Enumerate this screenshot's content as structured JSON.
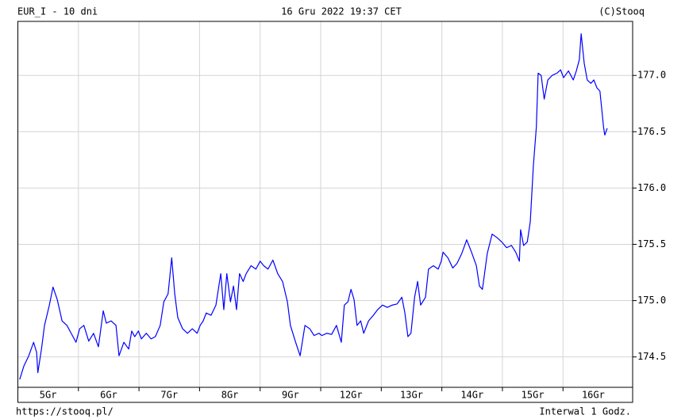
{
  "chart_data": {
    "type": "line",
    "title": "EUR_I - 10 dni",
    "subtitle": "16 Gru 2022 19:37 CET",
    "credit": "(C)Stooq",
    "source": "https://stooq.pl/",
    "interval": "Interwal 1 Godz.",
    "grid": true,
    "xlim": [
      0,
      10.15
    ],
    "xticks": [
      {
        "value": 0,
        "label": "5Gr"
      },
      {
        "value": 1,
        "label": "6Gr"
      },
      {
        "value": 2,
        "label": "7Gr"
      },
      {
        "value": 3,
        "label": "8Gr"
      },
      {
        "value": 4,
        "label": "9Gr"
      },
      {
        "value": 5,
        "label": "12Gr"
      },
      {
        "value": 6,
        "label": "13Gr"
      },
      {
        "value": 7,
        "label": "14Gr"
      },
      {
        "value": 8,
        "label": "15Gr"
      },
      {
        "value": 9,
        "label": "16Gr"
      }
    ],
    "ylim": [
      174.23,
      177.48
    ],
    "yticks": [
      174.5,
      {
        "value": 175,
        "label": "175.0"
      },
      175.5,
      {
        "value": 176,
        "label": "176.0"
      },
      176.5,
      {
        "value": 177,
        "label": "177.0"
      }
    ],
    "x": [
      0.03,
      0.1,
      0.18,
      0.26,
      0.31,
      0.33,
      0.39,
      0.44,
      0.52,
      0.58,
      0.65,
      0.73,
      0.81,
      0.88,
      0.96,
      1.02,
      1.09,
      1.17,
      1.25,
      1.33,
      1.41,
      1.46,
      1.54,
      1.62,
      1.67,
      1.75,
      1.83,
      1.88,
      1.93,
      1.99,
      2.04,
      2.12,
      2.2,
      2.27,
      2.35,
      2.41,
      2.48,
      2.54,
      2.59,
      2.64,
      2.72,
      2.8,
      2.88,
      2.96,
      3.01,
      3.06,
      3.11,
      3.19,
      3.27,
      3.35,
      3.4,
      3.45,
      3.51,
      3.56,
      3.61,
      3.66,
      3.72,
      3.77,
      3.85,
      3.93,
      4.0,
      4.06,
      4.13,
      4.21,
      4.29,
      4.37,
      4.45,
      4.5,
      4.58,
      4.66,
      4.74,
      4.82,
      4.89,
      4.97,
      5.02,
      5.1,
      5.18,
      5.26,
      5.34,
      5.39,
      5.45,
      5.5,
      5.55,
      5.6,
      5.66,
      5.71,
      5.79,
      5.87,
      5.94,
      6.02,
      6.1,
      6.18,
      6.26,
      6.34,
      6.39,
      6.44,
      6.49,
      6.55,
      6.6,
      6.65,
      6.73,
      6.78,
      6.86,
      6.94,
      6.99,
      7.02,
      7.1,
      7.18,
      7.25,
      7.33,
      7.41,
      7.49,
      7.57,
      7.62,
      7.67,
      7.75,
      7.83,
      7.91,
      7.99,
      8.07,
      8.15,
      8.22,
      8.28,
      8.3,
      8.35,
      8.41,
      8.46,
      8.51,
      8.56,
      8.59,
      8.64,
      8.69,
      8.75,
      8.82,
      8.9,
      8.96,
      9.01,
      9.09,
      9.17,
      9.22,
      9.27,
      9.3,
      9.35,
      9.4,
      9.46,
      9.51,
      9.56,
      9.61,
      9.67,
      9.69,
      9.73
    ],
    "series": [
      {
        "color": "#0000ff",
        "values": [
          174.3,
          174.42,
          174.51,
          174.63,
          174.54,
          174.36,
          174.57,
          174.78,
          174.96,
          175.12,
          175.01,
          174.82,
          174.78,
          174.71,
          174.63,
          174.75,
          174.78,
          174.64,
          174.71,
          174.59,
          174.91,
          174.8,
          174.82,
          174.78,
          174.51,
          174.63,
          174.57,
          174.73,
          174.68,
          174.73,
          174.66,
          174.71,
          174.66,
          174.68,
          174.78,
          174.99,
          175.06,
          175.38,
          175.06,
          174.85,
          174.75,
          174.71,
          174.75,
          174.71,
          174.78,
          174.82,
          174.89,
          174.87,
          174.96,
          175.24,
          174.92,
          175.24,
          174.99,
          175.13,
          174.92,
          175.24,
          175.17,
          175.24,
          175.31,
          175.28,
          175.35,
          175.31,
          175.28,
          175.36,
          175.24,
          175.17,
          174.99,
          174.78,
          174.64,
          174.51,
          174.78,
          174.75,
          174.69,
          174.71,
          174.69,
          174.71,
          174.7,
          174.78,
          174.63,
          174.96,
          174.99,
          175.1,
          175.01,
          174.78,
          174.82,
          174.71,
          174.82,
          174.87,
          174.92,
          174.96,
          174.94,
          174.96,
          174.97,
          175.03,
          174.89,
          174.68,
          174.71,
          175.03,
          175.17,
          174.96,
          175.03,
          175.28,
          175.31,
          175.28,
          175.35,
          175.43,
          175.38,
          175.29,
          175.33,
          175.42,
          175.54,
          175.43,
          175.31,
          175.13,
          175.1,
          175.42,
          175.59,
          175.56,
          175.52,
          175.47,
          175.49,
          175.43,
          175.35,
          175.63,
          175.49,
          175.52,
          175.7,
          176.19,
          176.54,
          177.02,
          177.0,
          176.79,
          176.96,
          177.0,
          177.02,
          177.05,
          176.98,
          177.04,
          176.96,
          177.04,
          177.14,
          177.37,
          177.11,
          176.96,
          176.93,
          176.96,
          176.89,
          176.86,
          176.54,
          176.47,
          176.53
        ]
      }
    ]
  }
}
